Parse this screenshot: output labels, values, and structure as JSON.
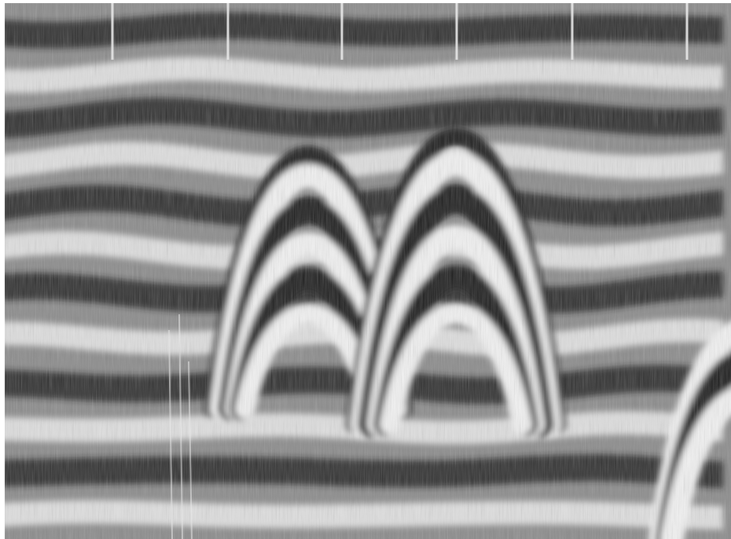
{
  "image": {
    "kind": "grayscale ground-penetrating radar profile (radargram)",
    "palette": {
      "background": "#ffffff",
      "dark_band": "#1e1e1e",
      "light_band": "#f2f2f2",
      "mid_gray": "#8a8a8a"
    },
    "features": {
      "hyperbola_count": 2,
      "partial_hyperbola_edge": "right",
      "distance_marker_count": 6
    }
  }
}
